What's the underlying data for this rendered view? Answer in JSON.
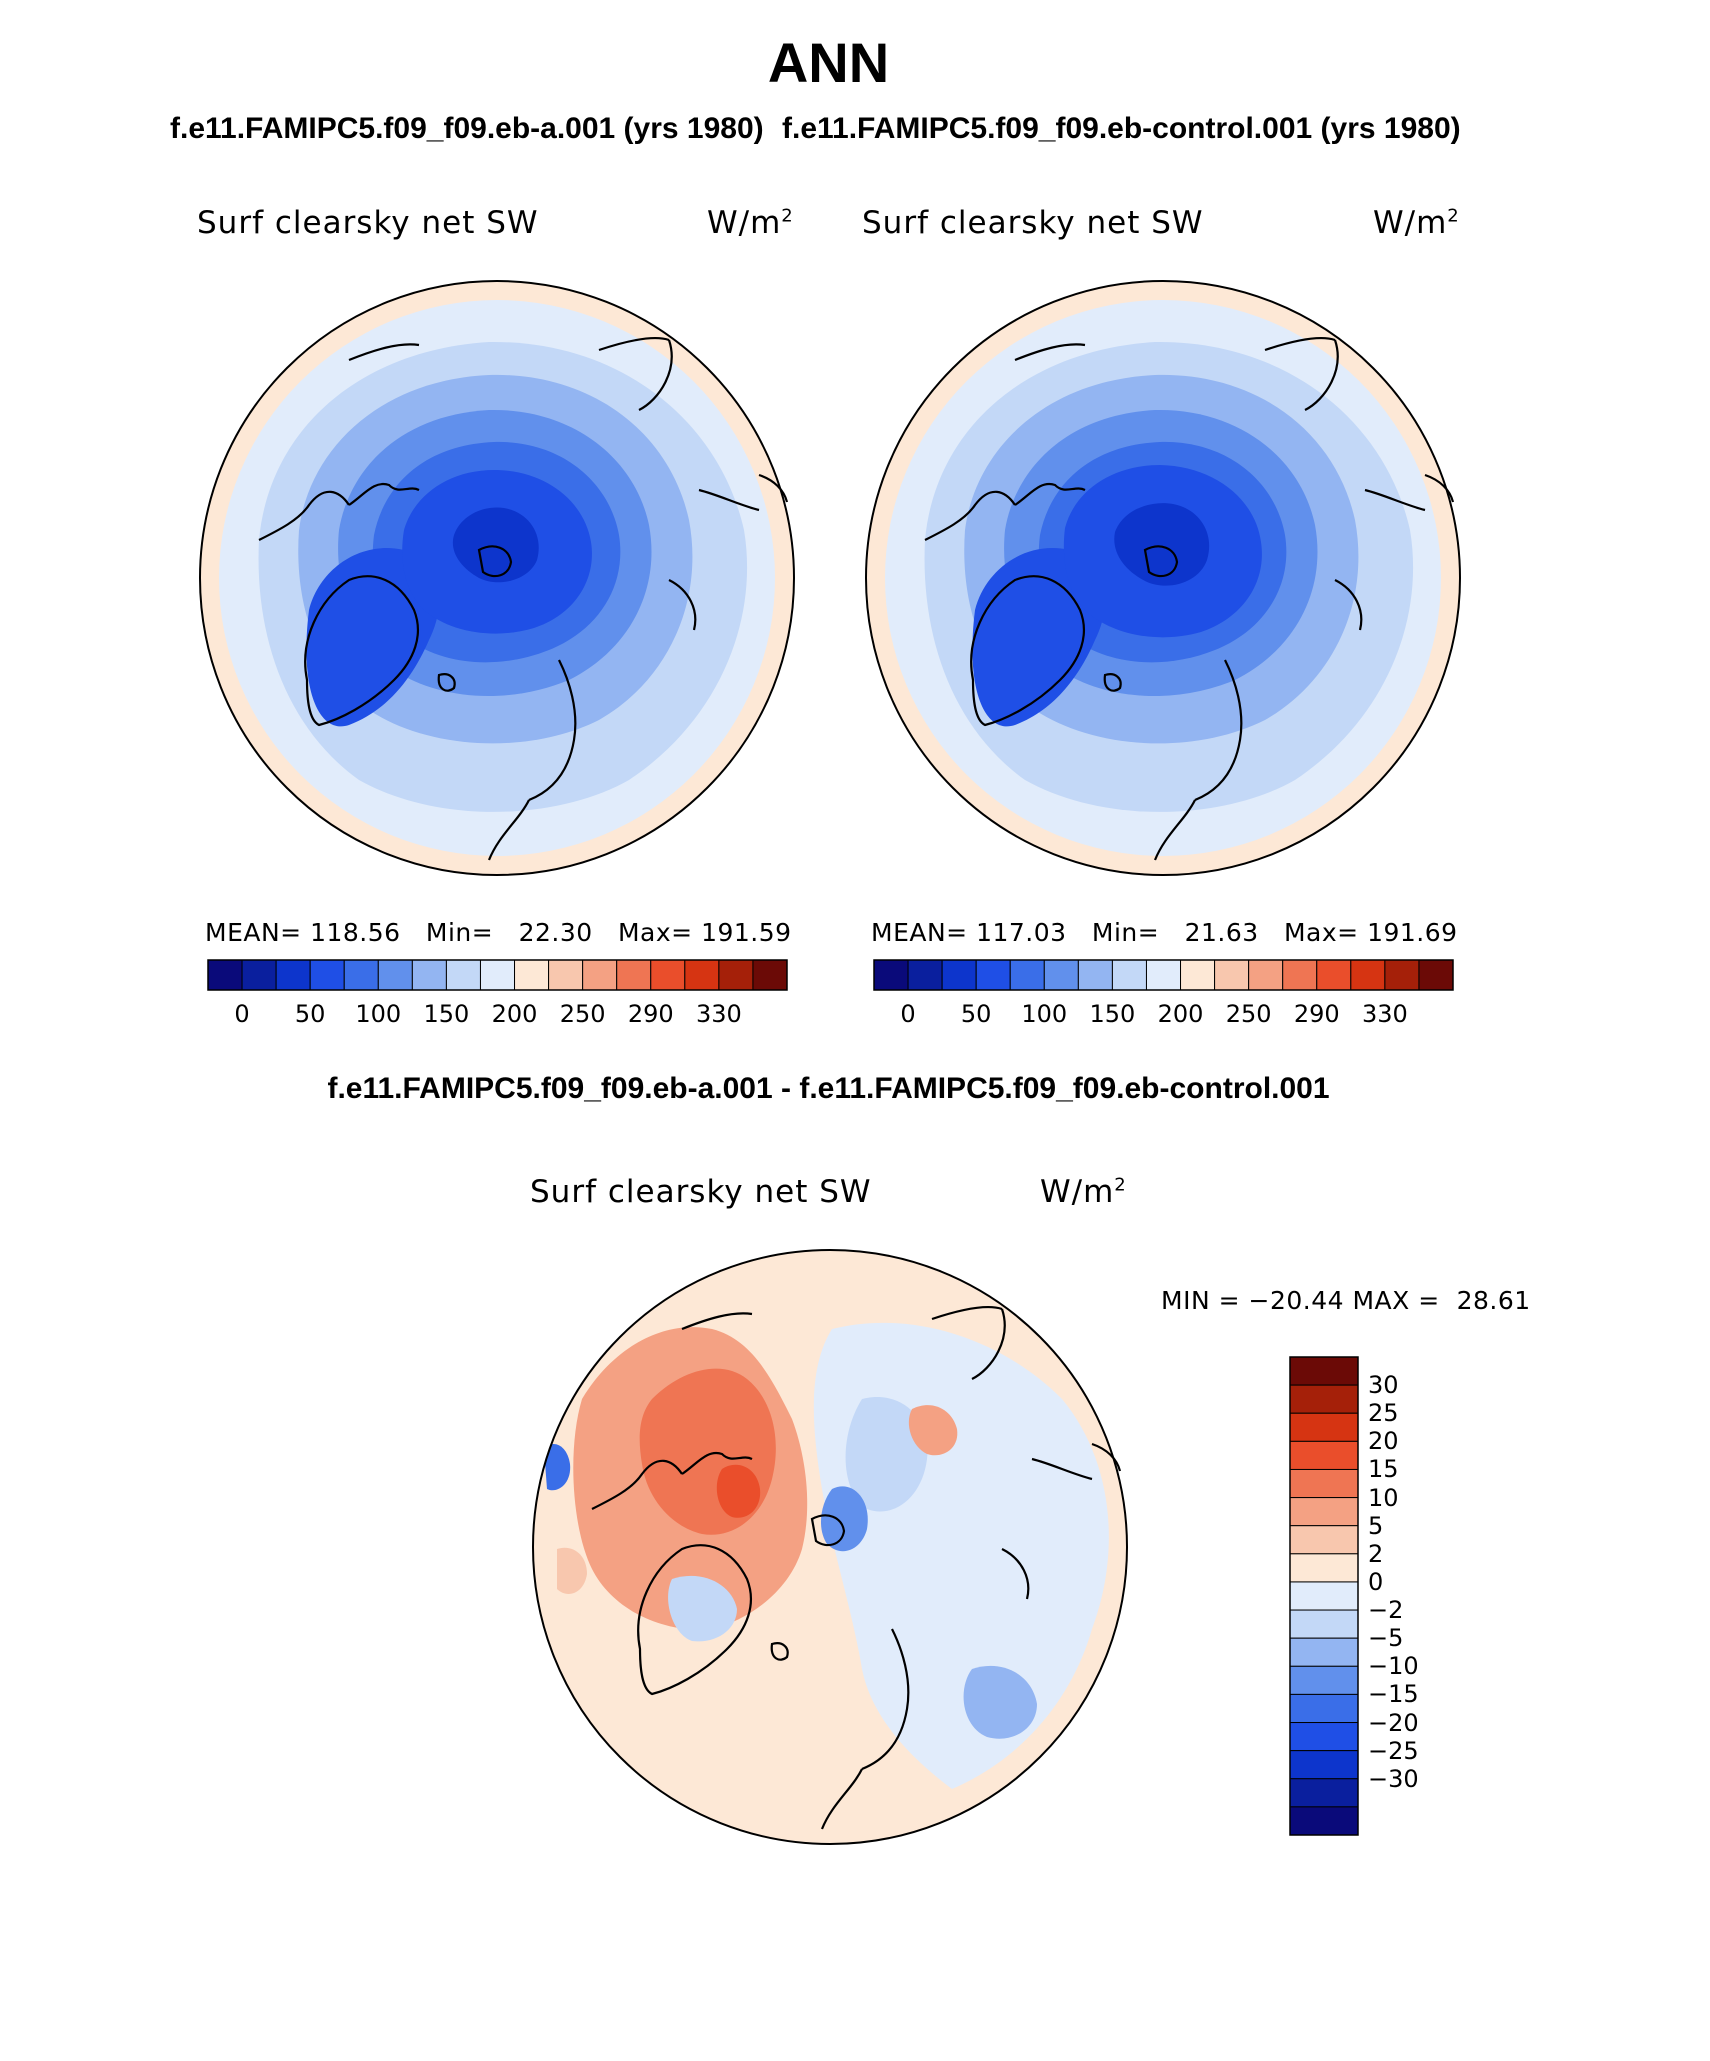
{
  "header": {
    "title": "ANN",
    "case_a_title": "f.e11.FAMIPC5.f09_f09.eb-a.001 (yrs 1980)",
    "case_b_title": "f.e11.FAMIPC5.f09_f09.eb-control.001 (yrs 1980)",
    "diff_title": "f.e11.FAMIPC5.f09_f09.eb-a.001 - f.e11.FAMIPC5.f09_f09.eb-control.001"
  },
  "panels": {
    "a": {
      "variable": "Surf clearsky net SW",
      "units": "W/m",
      "units_sup": "2",
      "mean_label": "MEAN=",
      "mean": "118.56",
      "min_label": "Min=",
      "min": "22.30",
      "max_label": "Max=",
      "max": "191.59"
    },
    "b": {
      "variable": "Surf clearsky net SW",
      "units": "W/m",
      "units_sup": "2",
      "mean_label": "MEAN=",
      "mean": "117.03",
      "min_label": "Min=",
      "min": "21.63",
      "max_label": "Max=",
      "max": "191.69"
    },
    "diff": {
      "variable": "Surf clearsky net SW",
      "units": "W/m",
      "units_sup": "2",
      "min_label": "MIN =",
      "min": "−20.44",
      "max_label": "MAX =",
      "max": "28.61"
    }
  },
  "colorbars": {
    "absolute": {
      "colors": [
        "#0a0a7a",
        "#0a1f9e",
        "#0d35cc",
        "#1f4fe6",
        "#3a6ee8",
        "#6190ec",
        "#93b5f2",
        "#c3d8f7",
        "#e1ecfb",
        "#fde8d6",
        "#f8c7ae",
        "#f4a183",
        "#ef7553",
        "#ea4e2b",
        "#d63412",
        "#a52009",
        "#6b0a06"
      ],
      "tick_labels": [
        "0",
        "50",
        "100",
        "150",
        "200",
        "250",
        "290",
        "330"
      ]
    },
    "difference": {
      "colors": [
        "#6b0a06",
        "#a52009",
        "#d63412",
        "#ea4e2b",
        "#ef7553",
        "#f4a183",
        "#f8c7ae",
        "#fde8d6",
        "#e1ecfb",
        "#c3d8f7",
        "#93b5f2",
        "#6190ec",
        "#3a6ee8",
        "#1f4fe6",
        "#0d35cc",
        "#0a1f9e",
        "#0a0a7a"
      ],
      "tick_labels": [
        "30",
        "25",
        "20",
        "15",
        "10",
        "5",
        "2",
        "0",
        "−2",
        "−5",
        "−10",
        "−15",
        "−20",
        "−25",
        "−30"
      ]
    }
  },
  "map_colors": {
    "peach": "#fde8d6",
    "pale_blue": "#e1ecfb",
    "light_blue": "#c3d8f7",
    "mid_blue": "#93b5f2",
    "blue": "#6190ec",
    "strong_blue": "#3a6ee8",
    "deep_blue": "#1f4fe6",
    "darkest_blue": "#0d35cc",
    "orange_light": "#f8c7ae",
    "orange": "#f4a183",
    "orange_strong": "#ef7553",
    "red": "#ea4e2b"
  }
}
